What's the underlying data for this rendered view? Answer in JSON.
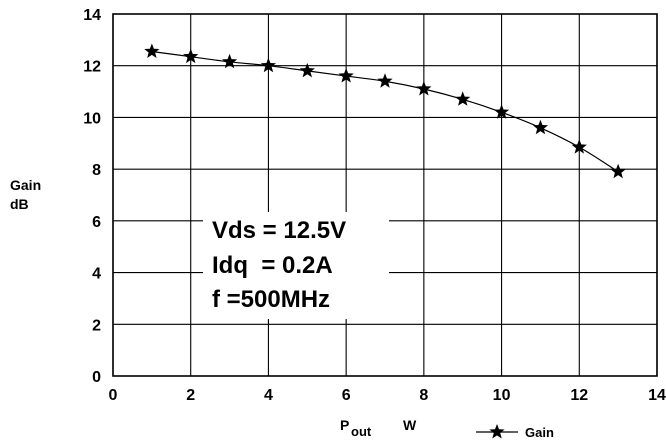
{
  "chart_data": {
    "type": "line",
    "title": "",
    "ylabel_line1": "Gain",
    "ylabel_line2": "dB",
    "xlabel_main": "P",
    "xlabel_sub": "out",
    "xlabel_unit": "W",
    "xlim": [
      0,
      14
    ],
    "ylim": [
      0,
      14
    ],
    "xticks": [
      0,
      2,
      4,
      6,
      8,
      10,
      12,
      14
    ],
    "yticks": [
      0,
      2,
      4,
      6,
      8,
      10,
      12,
      14
    ],
    "grid": true,
    "legend_position": "bottom-right",
    "series": [
      {
        "name": "Gain",
        "marker": "star",
        "color": "#000000",
        "x": [
          1,
          2,
          3,
          4,
          5,
          6,
          7,
          8,
          9,
          10,
          11,
          12,
          13
        ],
        "y": [
          12.55,
          12.35,
          12.15,
          12.0,
          11.8,
          11.6,
          11.4,
          11.1,
          10.7,
          10.2,
          9.6,
          8.85,
          7.9
        ]
      }
    ],
    "annotations": [
      "Vds = 12.5V",
      "Idq  = 0.2A",
      "f =500MHz"
    ]
  }
}
